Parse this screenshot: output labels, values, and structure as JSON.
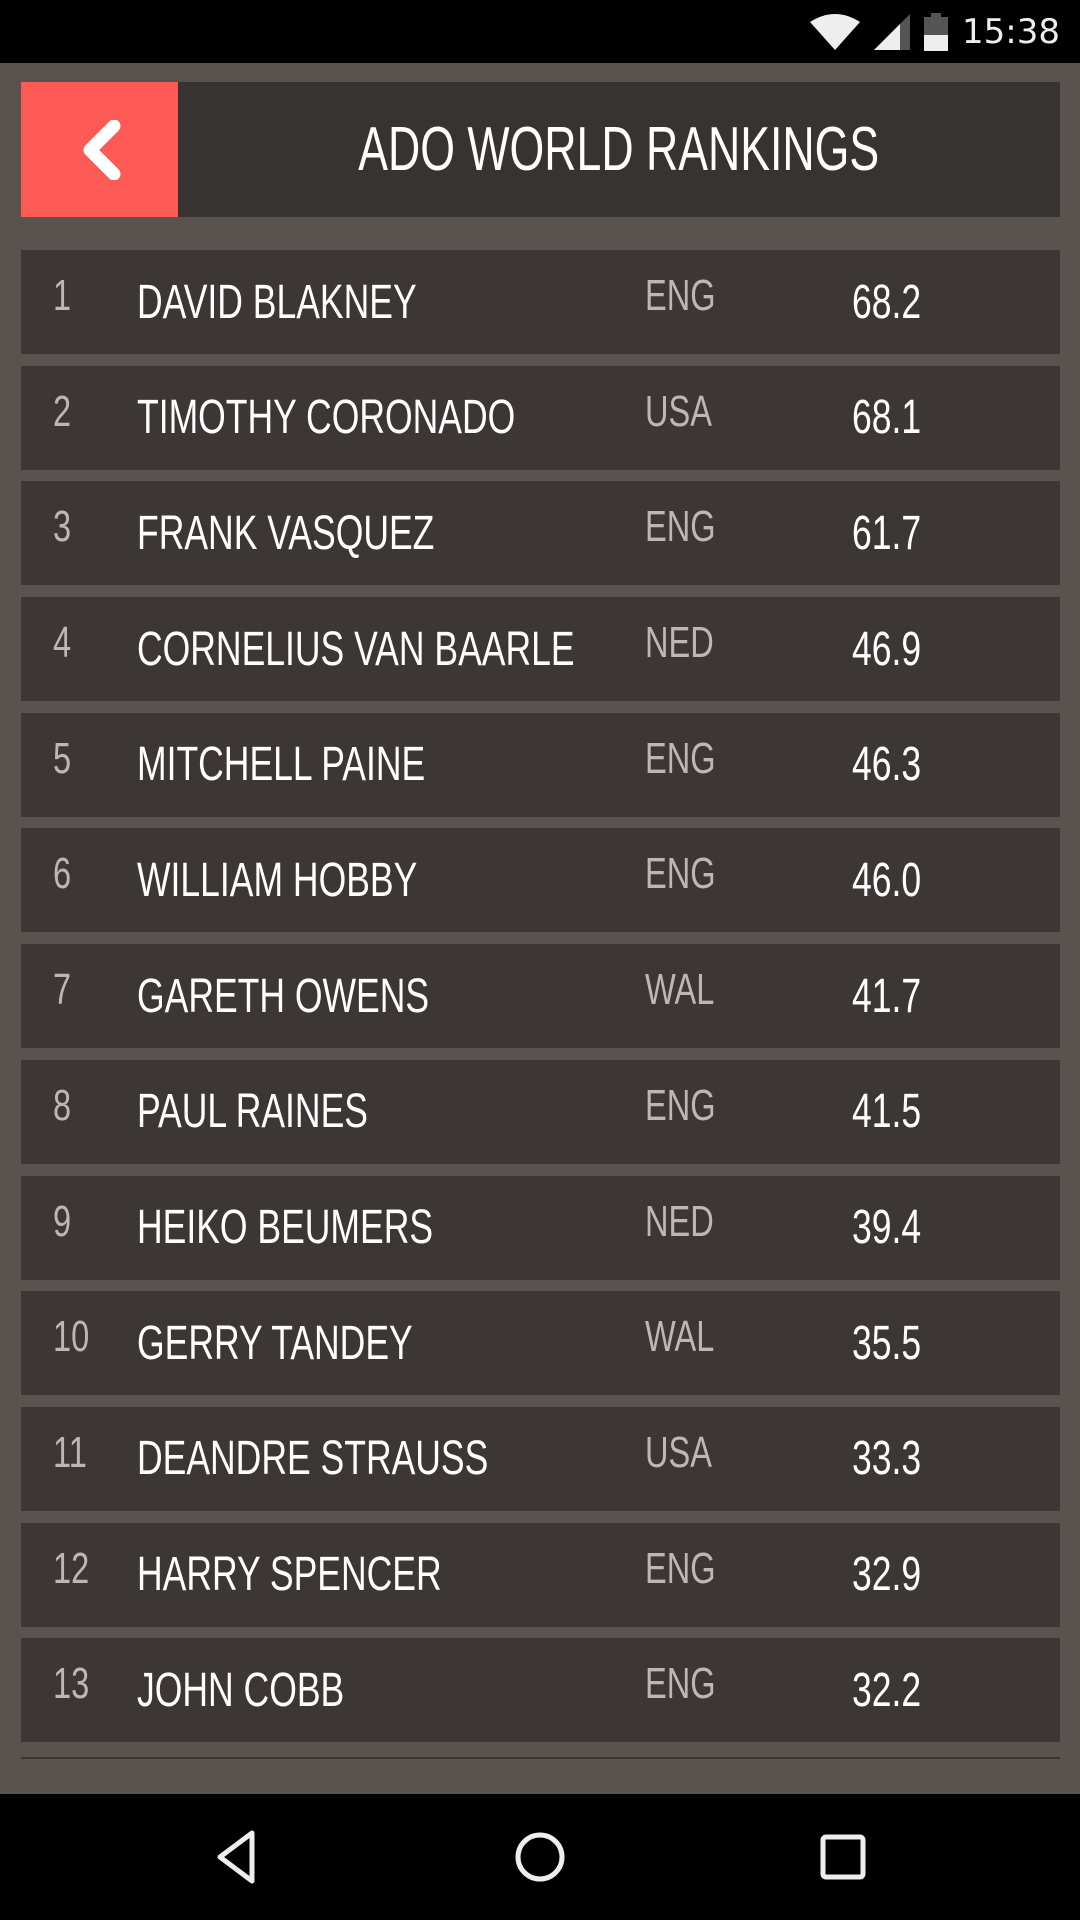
{
  "status_bar": {
    "time": "15:38",
    "battery_level": "44",
    "icons": [
      "wifi-icon",
      "signal-icon",
      "battery-icon"
    ]
  },
  "header": {
    "title": "ADO WORLD RANKINGS",
    "back_icon": "chevron-left-icon",
    "accent_color": "#fd5a55"
  },
  "rankings": [
    {
      "rank": "1",
      "name": "DAVID BLAKNEY",
      "country": "ENG",
      "score": "68.2"
    },
    {
      "rank": "2",
      "name": "TIMOTHY CORONADO",
      "country": "USA",
      "score": "68.1"
    },
    {
      "rank": "3",
      "name": "FRANK VASQUEZ",
      "country": "ENG",
      "score": "61.7"
    },
    {
      "rank": "4",
      "name": "CORNELIUS VAN BAARLE",
      "country": "NED",
      "score": "46.9"
    },
    {
      "rank": "5",
      "name": "MITCHELL PAINE",
      "country": "ENG",
      "score": "46.3"
    },
    {
      "rank": "6",
      "name": "WILLIAM HOBBY",
      "country": "ENG",
      "score": "46.0"
    },
    {
      "rank": "7",
      "name": "GARETH OWENS",
      "country": "WAL",
      "score": "41.7"
    },
    {
      "rank": "8",
      "name": "PAUL RAINES",
      "country": "ENG",
      "score": "41.5"
    },
    {
      "rank": "9",
      "name": "HEIKO BEUMERS",
      "country": "NED",
      "score": "39.4"
    },
    {
      "rank": "10",
      "name": "GERRY TANDEY",
      "country": "WAL",
      "score": "35.5"
    },
    {
      "rank": "11",
      "name": "DEANDRE STRAUSS",
      "country": "USA",
      "score": "33.3"
    },
    {
      "rank": "12",
      "name": "HARRY SPENCER",
      "country": "ENG",
      "score": "32.9"
    },
    {
      "rank": "13",
      "name": "JOHN COBB",
      "country": "ENG",
      "score": "32.2"
    }
  ],
  "nav_bar": {
    "icons": [
      "back-icon",
      "home-icon",
      "recents-icon"
    ]
  }
}
